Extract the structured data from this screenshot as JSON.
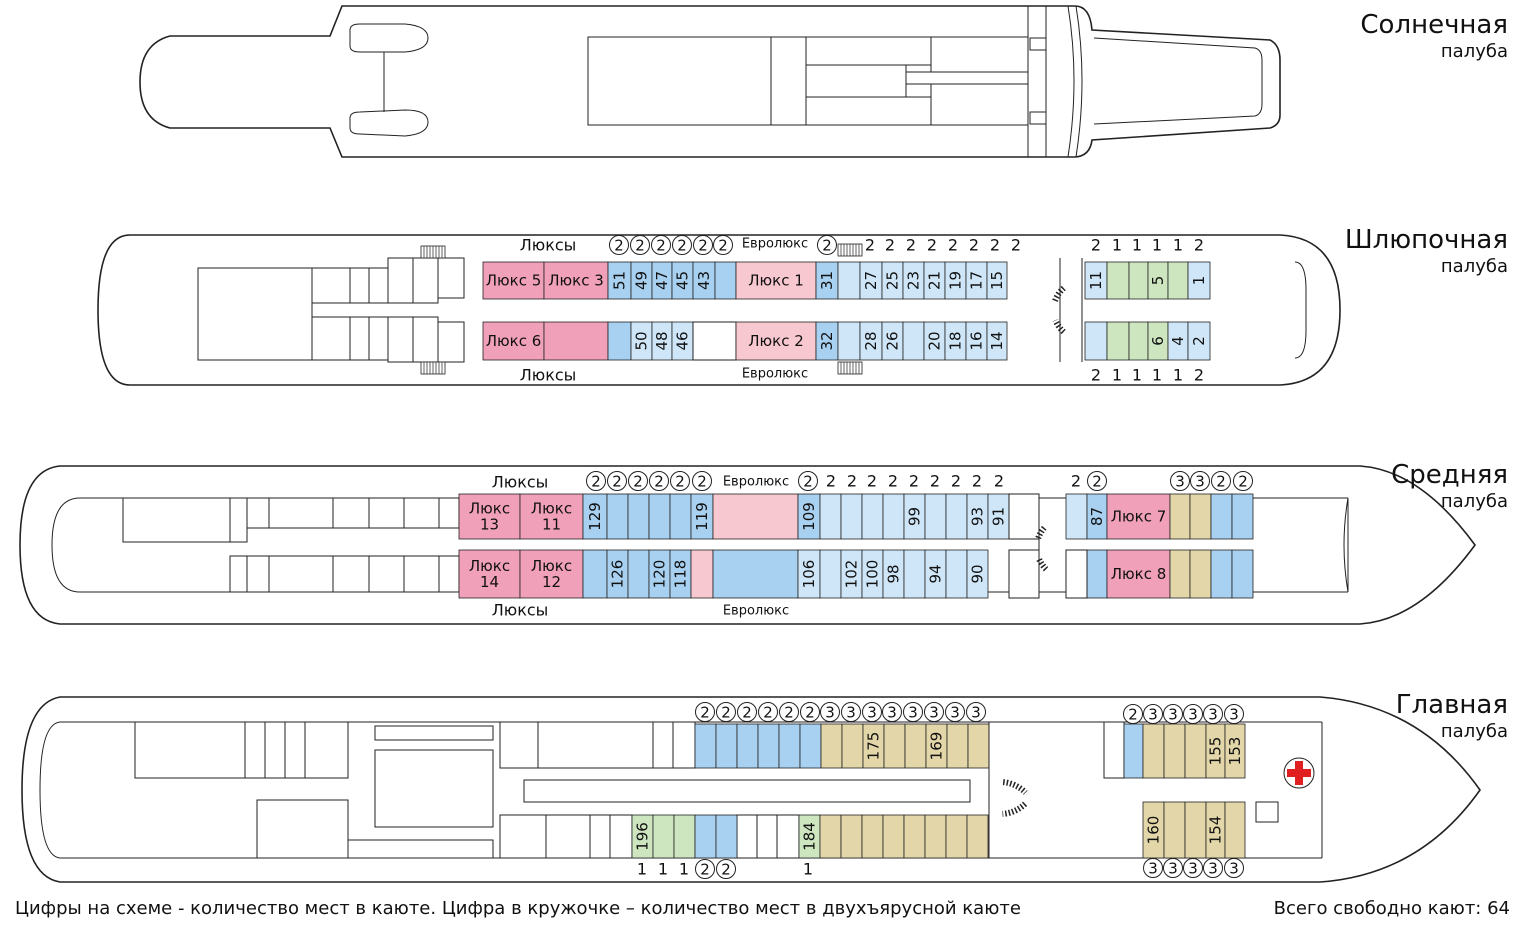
{
  "decks": [
    {
      "id": "sun",
      "name": "Солнечная",
      "sub": "палуба"
    },
    {
      "id": "boat",
      "name": "Шлюпочная",
      "sub": "палуба"
    },
    {
      "id": "middle",
      "name": "Средняя",
      "sub": "палуба"
    },
    {
      "id": "main",
      "name": "Главная",
      "sub": "палуба"
    }
  ],
  "legend": "Цифры на схеме - количество мест в каюте. Цифра в кружочке – количество мест в двухъярусной каюте",
  "total": "Всего свободно кают: 64",
  "colors": {
    "suite": "#f0a0b8",
    "euro": "#f8c8d0",
    "blue": "#a8d0f0",
    "lightblue": "#cfe6f8",
    "green": "#cde6c0",
    "beige": "#e3d6a8",
    "deep": "#8fbfe8",
    "cross": "#e02020"
  },
  "boat_deck": {
    "labels": {
      "suites_top": "Люксы",
      "suites_bottom": "Люксы",
      "euro_top": "Евролюкс",
      "euro_bottom": "Евролюкс"
    },
    "cabins_top": [
      {
        "label": "Люкс 5",
        "c": "suite"
      },
      {
        "label": "Люкс 3",
        "c": "suite"
      },
      {
        "label": "51",
        "c": "blue",
        "b": "2"
      },
      {
        "label": "49",
        "c": "blue",
        "b": "2"
      },
      {
        "label": "47",
        "c": "blue",
        "b": "2"
      },
      {
        "label": "45",
        "c": "blue",
        "b": "2"
      },
      {
        "label": "43",
        "c": "blue",
        "b": "2"
      },
      {
        "label": "",
        "c": "blue",
        "b": "2"
      },
      {
        "label": "Люкс 1",
        "c": "euro"
      },
      {
        "label": "31",
        "c": "blue",
        "b": "2"
      },
      {
        "label": "",
        "c": "lightblue",
        "s": "2"
      },
      {
        "label": "27",
        "c": "lightblue",
        "s": "2"
      },
      {
        "label": "25",
        "c": "lightblue",
        "s": "2"
      },
      {
        "label": "23",
        "c": "lightblue",
        "s": "2"
      },
      {
        "label": "21",
        "c": "lightblue",
        "s": "2"
      },
      {
        "label": "19",
        "c": "lightblue",
        "s": "2"
      },
      {
        "label": "17",
        "c": "lightblue",
        "s": "2"
      },
      {
        "label": "15",
        "c": "lightblue",
        "s": "2"
      },
      {
        "label": "11",
        "c": "lightblue",
        "s": "2"
      },
      {
        "label": "",
        "c": "green",
        "s": "1"
      },
      {
        "label": "",
        "c": "green",
        "s": "1"
      },
      {
        "label": "5",
        "c": "green",
        "s": "1"
      },
      {
        "label": "",
        "c": "green",
        "s": "1"
      },
      {
        "label": "1",
        "c": "lightblue",
        "s": "2"
      }
    ],
    "cabins_bottom": [
      {
        "label": "Люкс 6",
        "c": "suite"
      },
      {
        "label": "",
        "c": "suite"
      },
      {
        "label": "",
        "c": "blue"
      },
      {
        "label": "50",
        "c": "lightblue"
      },
      {
        "label": "48",
        "c": "lightblue"
      },
      {
        "label": "46",
        "c": "lightblue"
      },
      {
        "label": "Люкс 2",
        "c": "euro"
      },
      {
        "label": "32",
        "c": "blue"
      },
      {
        "label": "",
        "c": "lightblue"
      },
      {
        "label": "28",
        "c": "lightblue"
      },
      {
        "label": "26",
        "c": "lightblue"
      },
      {
        "label": "",
        "c": "lightblue"
      },
      {
        "label": "20",
        "c": "lightblue"
      },
      {
        "label": "18",
        "c": "lightblue"
      },
      {
        "label": "16",
        "c": "lightblue"
      },
      {
        "label": "14",
        "c": "lightblue"
      },
      {
        "label": "",
        "c": "lightblue",
        "s": "2"
      },
      {
        "label": "",
        "c": "green",
        "s": "1"
      },
      {
        "label": "",
        "c": "green",
        "s": "1"
      },
      {
        "label": "6",
        "c": "green",
        "s": "1"
      },
      {
        "label": "4",
        "c": "lightblue",
        "s": "1"
      },
      {
        "label": "2",
        "c": "lightblue",
        "s": "2"
      }
    ]
  },
  "middle_deck": {
    "labels": {
      "suites_top": "Люксы",
      "suites_bottom": "Люксы",
      "euro_top": "Евролюкс",
      "euro_bottom": "Евролюкс"
    },
    "cabins_top": [
      {
        "label": "Люкс 13",
        "c": "suite"
      },
      {
        "label": "Люкс 11",
        "c": "suite"
      },
      {
        "label": "129",
        "c": "blue",
        "b": "2"
      },
      {
        "label": "",
        "c": "blue",
        "b": "2"
      },
      {
        "label": "",
        "c": "blue",
        "b": "2"
      },
      {
        "label": "",
        "c": "blue",
        "b": "2"
      },
      {
        "label": "",
        "c": "blue",
        "b": "2"
      },
      {
        "label": "119",
        "c": "blue",
        "b": "2"
      },
      {
        "label": "",
        "c": "euro"
      },
      {
        "label": "109",
        "c": "blue",
        "b": "2"
      },
      {
        "label": "",
        "c": "lightblue",
        "s": "2"
      },
      {
        "label": "",
        "c": "lightblue",
        "s": "2"
      },
      {
        "label": "",
        "c": "lightblue",
        "s": "2"
      },
      {
        "label": "",
        "c": "lightblue",
        "s": "2"
      },
      {
        "label": "99",
        "c": "lightblue",
        "s": "2"
      },
      {
        "label": "",
        "c": "lightblue",
        "s": "2"
      },
      {
        "label": "",
        "c": "lightblue",
        "s": "2"
      },
      {
        "label": "93",
        "c": "lightblue",
        "s": "2"
      },
      {
        "label": "91",
        "c": "lightblue",
        "s": "2"
      },
      {
        "label": "",
        "c": "lightblue",
        "s": "2"
      },
      {
        "label": "87",
        "c": "blue",
        "b": "2"
      },
      {
        "label": "Люкс 7",
        "c": "suite"
      },
      {
        "label": "",
        "c": "beige",
        "b": "3"
      },
      {
        "label": "",
        "c": "beige",
        "b": "3"
      },
      {
        "label": "",
        "c": "blue",
        "b": "2"
      },
      {
        "label": "",
        "c": "blue",
        "b": "2"
      }
    ],
    "cabins_bottom": [
      {
        "label": "Люкс 14",
        "c": "suite"
      },
      {
        "label": "Люкс 12",
        "c": "suite"
      },
      {
        "label": "",
        "c": "blue"
      },
      {
        "label": "126",
        "c": "blue"
      },
      {
        "label": "",
        "c": "blue"
      },
      {
        "label": "120",
        "c": "blue"
      },
      {
        "label": "118",
        "c": "blue"
      },
      {
        "label": "",
        "c": "euro"
      },
      {
        "label": "",
        "c": "blue"
      },
      {
        "label": "106",
        "c": "lightblue"
      },
      {
        "label": "",
        "c": "lightblue"
      },
      {
        "label": "102",
        "c": "lightblue"
      },
      {
        "label": "100",
        "c": "lightblue"
      },
      {
        "label": "98",
        "c": "lightblue"
      },
      {
        "label": "",
        "c": "lightblue"
      },
      {
        "label": "94",
        "c": "lightblue"
      },
      {
        "label": "",
        "c": "lightblue"
      },
      {
        "label": "90",
        "c": "lightblue"
      },
      {
        "label": "",
        "c": "blue"
      },
      {
        "label": "Люкс 8",
        "c": "suite"
      },
      {
        "label": "",
        "c": "beige"
      },
      {
        "label": "",
        "c": "beige"
      },
      {
        "label": "",
        "c": "blue"
      },
      {
        "label": "",
        "c": "blue"
      }
    ]
  },
  "main_deck": {
    "cabins_top": [
      {
        "label": "",
        "c": "blue",
        "b": "2"
      },
      {
        "label": "",
        "c": "blue",
        "b": "2"
      },
      {
        "label": "",
        "c": "blue",
        "b": "2"
      },
      {
        "label": "",
        "c": "blue",
        "b": "2"
      },
      {
        "label": "",
        "c": "blue",
        "b": "2"
      },
      {
        "label": "",
        "c": "blue",
        "b": "2"
      },
      {
        "label": "",
        "c": "beige",
        "b": "3"
      },
      {
        "label": "",
        "c": "beige",
        "b": "3"
      },
      {
        "label": "175",
        "c": "beige",
        "b": "3"
      },
      {
        "label": "",
        "c": "beige",
        "b": "3"
      },
      {
        "label": "",
        "c": "beige",
        "b": "3"
      },
      {
        "label": "169",
        "c": "beige",
        "b": "3"
      },
      {
        "label": "",
        "c": "beige",
        "b": "3"
      },
      {
        "label": "",
        "c": "beige",
        "b": "3"
      },
      {
        "label": "",
        "c": "blue",
        "b": "2"
      },
      {
        "label": "",
        "c": "beige",
        "b": "3"
      },
      {
        "label": "",
        "c": "beige",
        "b": "3"
      },
      {
        "label": "",
        "c": "beige",
        "b": "3"
      },
      {
        "label": "155",
        "c": "beige",
        "b": "3"
      },
      {
        "label": "153",
        "c": "beige",
        "b": "3"
      }
    ],
    "cabins_bottom": [
      {
        "label": "196",
        "c": "green",
        "s": "1"
      },
      {
        "label": "",
        "c": "green",
        "s": "1"
      },
      {
        "label": "",
        "c": "green",
        "s": "1"
      },
      {
        "label": "",
        "c": "blue",
        "b": "2"
      },
      {
        "label": "",
        "c": "blue",
        "b": "2"
      },
      {
        "label": "184",
        "c": "green",
        "s": "1"
      },
      {
        "label": "",
        "c": "beige"
      },
      {
        "label": "",
        "c": "beige"
      },
      {
        "label": "",
        "c": "beige"
      },
      {
        "label": "",
        "c": "beige"
      },
      {
        "label": "",
        "c": "beige"
      },
      {
        "label": "",
        "c": "beige"
      },
      {
        "label": "",
        "c": "beige"
      },
      {
        "label": "",
        "c": "beige"
      },
      {
        "label": "160",
        "c": "beige",
        "b": "3"
      },
      {
        "label": "",
        "c": "beige",
        "b": "3"
      },
      {
        "label": "",
        "c": "beige",
        "b": "3"
      },
      {
        "label": "154",
        "c": "beige",
        "b": "3"
      },
      {
        "label": "",
        "c": "beige",
        "b": "3"
      }
    ]
  }
}
